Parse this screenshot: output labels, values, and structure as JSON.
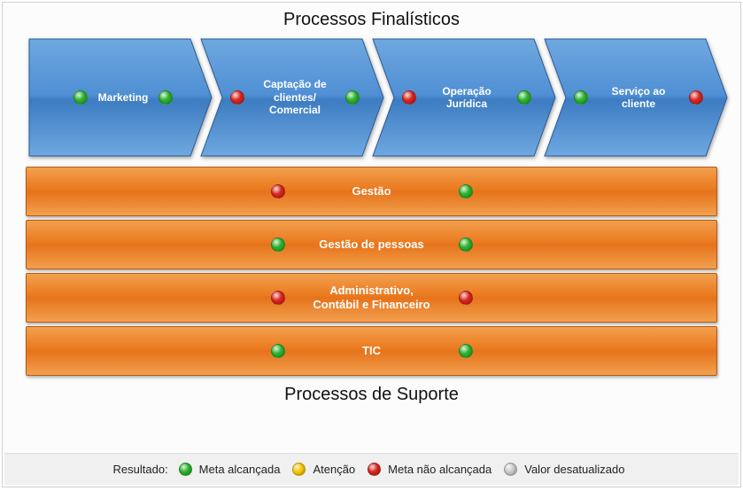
{
  "titles": {
    "top": "Processos Finalísticos",
    "bottom": "Processos de Suporte"
  },
  "colors": {
    "green": "#2bb02b",
    "red": "#d8241e",
    "yellow": "#f7c600",
    "gray": "#c8c8c8",
    "chevron_fill_top": "#6fa8e0",
    "chevron_fill_mid": "#4f8fd3",
    "chevron_fill_bot": "#3d7cc2",
    "chevron_stroke": "#2a5a94",
    "support_fill": "#ed7d31"
  },
  "chevrons": [
    {
      "label": "Marketing",
      "left_dot": "green",
      "right_dot": "green"
    },
    {
      "label": "Captação de clientes/ Comercial",
      "left_dot": "red",
      "right_dot": "green"
    },
    {
      "label": "Operação Jurídica",
      "left_dot": "red",
      "right_dot": "green"
    },
    {
      "label": "Serviço ao cliente",
      "left_dot": "green",
      "right_dot": "red"
    }
  ],
  "support_bars": [
    {
      "label": "Gestão",
      "left_dot": "red",
      "right_dot": "green"
    },
    {
      "label": "Gestão de pessoas",
      "left_dot": "green",
      "right_dot": "green"
    },
    {
      "label": "Administrativo, Contábil e Financeiro",
      "left_dot": "red",
      "right_dot": "red"
    },
    {
      "label": "TIC",
      "left_dot": "green",
      "right_dot": "green"
    }
  ],
  "legend": {
    "prefix": "Resultado:",
    "items": [
      {
        "color": "green",
        "label": "Meta alcançada"
      },
      {
        "color": "yellow",
        "label": "Atenção"
      },
      {
        "color": "red",
        "label": "Meta não alcançada"
      },
      {
        "color": "gray",
        "label": "Valor desatualizado"
      }
    ]
  },
  "layout": {
    "chevron_width": 214,
    "chevron_overlap": 20,
    "chevron_notch": 28,
    "chevron_height": 140
  }
}
